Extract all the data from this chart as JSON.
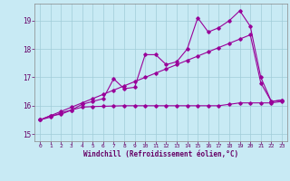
{
  "xlabel": "Windchill (Refroidissement éolien,°C)",
  "bg_color": "#c8eaf4",
  "grid_color": "#a0ccd8",
  "line_color": "#990099",
  "xlim": [
    -0.5,
    23.5
  ],
  "ylim": [
    14.75,
    19.6
  ],
  "xticks": [
    0,
    1,
    2,
    3,
    4,
    5,
    6,
    7,
    8,
    9,
    10,
    11,
    12,
    13,
    14,
    15,
    16,
    17,
    18,
    19,
    20,
    21,
    22,
    23
  ],
  "yticks": [
    15,
    16,
    17,
    18,
    19
  ],
  "series1_x": [
    0,
    1,
    2,
    3,
    4,
    5,
    6,
    7,
    8,
    9,
    10,
    11,
    12,
    13,
    14,
    15,
    16,
    17,
    18,
    19,
    20,
    21,
    22,
    23
  ],
  "series1_y": [
    15.5,
    15.65,
    15.7,
    15.85,
    16.05,
    16.15,
    16.25,
    16.95,
    16.6,
    16.65,
    17.8,
    17.8,
    17.45,
    17.55,
    18.0,
    19.1,
    18.6,
    18.75,
    19.0,
    19.35,
    18.8,
    17.0,
    16.15,
    16.2
  ],
  "series2_x": [
    0,
    1,
    2,
    3,
    4,
    5,
    6,
    7,
    8,
    9,
    10,
    11,
    12,
    13,
    14,
    15,
    16,
    17,
    18,
    19,
    20,
    21,
    22,
    23
  ],
  "series2_y": [
    15.5,
    15.65,
    15.8,
    15.95,
    16.1,
    16.25,
    16.4,
    16.55,
    16.7,
    16.85,
    17.0,
    17.15,
    17.3,
    17.45,
    17.6,
    17.75,
    17.9,
    18.05,
    18.2,
    18.35,
    18.5,
    16.8,
    16.15,
    16.2
  ],
  "series3_x": [
    0,
    1,
    2,
    3,
    4,
    5,
    6,
    7,
    8,
    9,
    10,
    11,
    12,
    13,
    14,
    15,
    16,
    17,
    18,
    19,
    20,
    21,
    22,
    23
  ],
  "series3_y": [
    15.5,
    15.6,
    15.75,
    15.85,
    15.95,
    15.97,
    15.98,
    15.99,
    16.0,
    16.0,
    16.0,
    16.0,
    16.0,
    16.0,
    16.0,
    16.0,
    16.0,
    16.0,
    16.05,
    16.1,
    16.1,
    16.1,
    16.1,
    16.15
  ]
}
